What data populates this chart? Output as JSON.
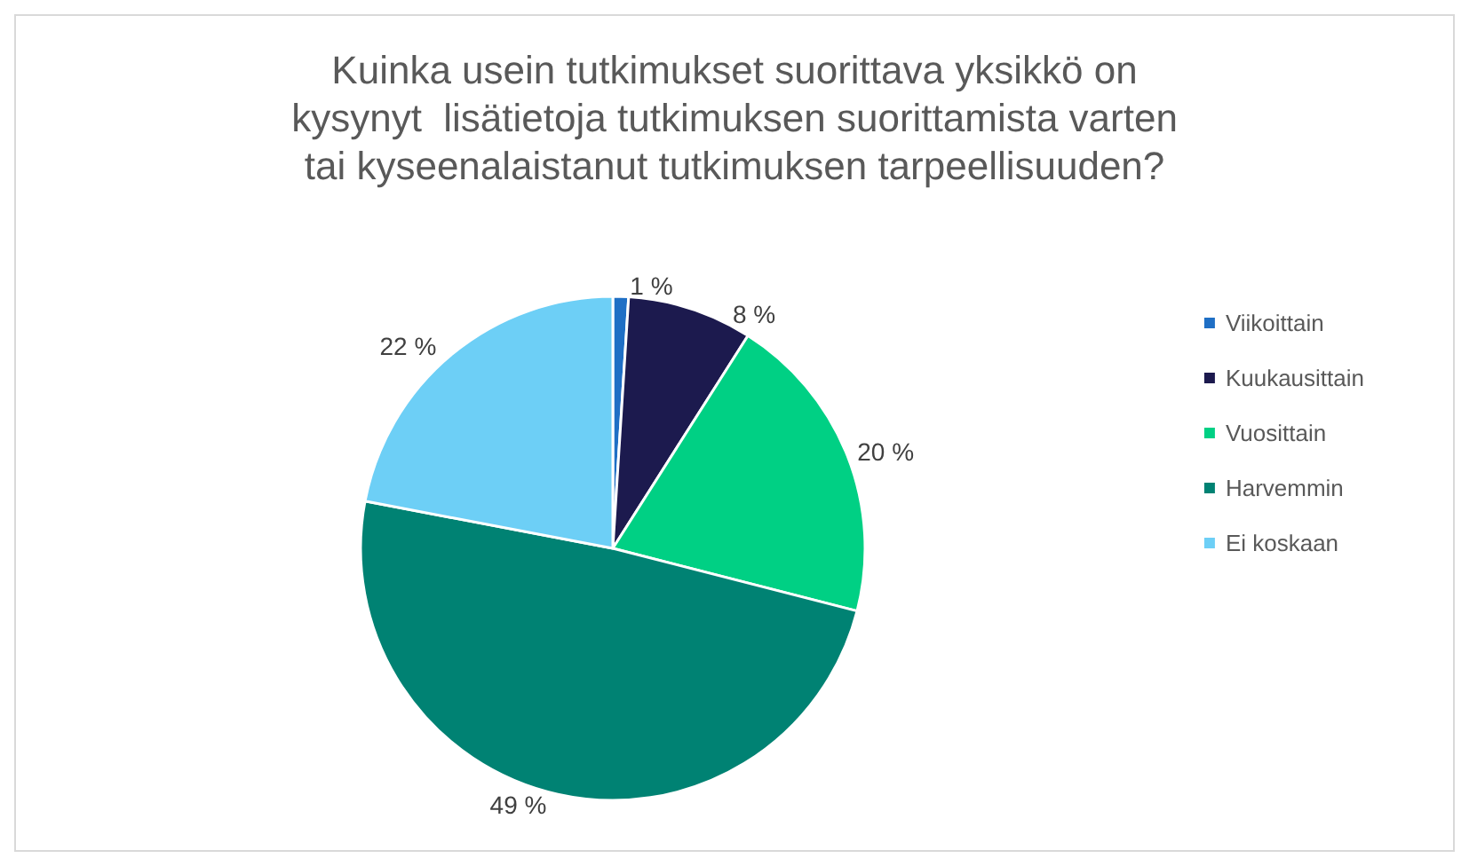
{
  "chart_data": {
    "type": "pie",
    "title": "Kuinka usein tutkimukset suorittava yksikkö on\nkysynyt  lisätietoja tutkimuksen suorittamista varten\ntai kyseenalaistanut tutkimuksen tarpeellisuuden?",
    "categories": [
      "Viikoittain",
      "Kuukausittain",
      "Vuosittain",
      "Harvemmin",
      "Ei koskaan"
    ],
    "values": [
      1,
      8,
      20,
      49,
      22
    ],
    "value_labels": [
      "1 %",
      "8 %",
      "20 %",
      "49 %",
      "22 %"
    ],
    "colors": [
      "#1f6fc5",
      "#1c1a4e",
      "#00d084",
      "#008273",
      "#6dcff6"
    ],
    "legend": "right"
  }
}
